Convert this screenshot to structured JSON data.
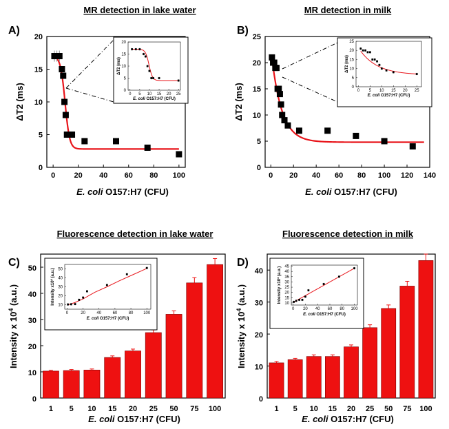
{
  "panel_labels": [
    "A)",
    "B)",
    "C)",
    "D)"
  ],
  "colors": {
    "fit": "#e8141a",
    "marker": "#000000",
    "bar": "#ee1111",
    "bar_edge": "#7a0000",
    "axis": "#000000"
  },
  "chart_data": [
    {
      "id": "A",
      "type": "scatter",
      "title": "MR detection in lake water",
      "xlabel_italic": "E. coli",
      "xlabel_rest": " O157:H7 (CFU)",
      "ylabel": "ΔT2 (ms)",
      "xlim": [
        -5,
        105
      ],
      "ylim": [
        0,
        20
      ],
      "xticks": [
        0,
        20,
        40,
        60,
        80,
        100
      ],
      "yticks": [
        0,
        5,
        10,
        15,
        20
      ],
      "x": [
        1,
        3,
        5,
        7,
        8,
        9,
        10,
        11,
        12,
        15,
        25,
        50,
        75,
        100
      ],
      "y": [
        17,
        17,
        17,
        15,
        14,
        10,
        8,
        5,
        5,
        5,
        4,
        4,
        3,
        2
      ],
      "fit": {
        "top": 17,
        "bottom": 2.8,
        "x0": 9.5,
        "k": 0.55
      },
      "inset": {
        "xlabel_italic": "E. coli",
        "xlabel_rest": " O157:H7 (CFU)",
        "ylabel": "ΔT2 (ms)",
        "xlim": [
          -1,
          26
        ],
        "ylim": [
          0,
          20
        ],
        "xticks": [
          0,
          5,
          10,
          15,
          20,
          25
        ],
        "yticks": [
          0,
          5,
          10,
          15,
          20
        ],
        "x": [
          1,
          3,
          5,
          7,
          8,
          9,
          10,
          11,
          12,
          15,
          25
        ],
        "y": [
          17,
          17,
          17,
          15,
          14,
          10,
          8,
          5,
          5,
          5,
          4
        ],
        "fit": {
          "top": 17,
          "bottom": 4,
          "x0": 9.8,
          "k": 1.1
        }
      }
    },
    {
      "id": "B",
      "type": "scatter",
      "title": "MR detection in milk",
      "xlabel_italic": "E. coli",
      "xlabel_rest": " O157:H7 (CFU)",
      "ylabel": "ΔT2 (ms)",
      "xlim": [
        -5,
        140
      ],
      "ylim": [
        0,
        25
      ],
      "xticks": [
        0,
        20,
        40,
        60,
        80,
        100,
        120,
        140
      ],
      "yticks": [
        0,
        5,
        10,
        15,
        20,
        25
      ],
      "x": [
        1,
        2,
        3,
        4,
        5,
        6,
        7,
        8,
        9,
        10,
        12,
        15,
        25,
        50,
        75,
        100,
        125
      ],
      "y": [
        21,
        20,
        20,
        19,
        19,
        15,
        15,
        14,
        12,
        10,
        9,
        8,
        7,
        7,
        6,
        5,
        4
      ],
      "fit": {
        "plateau": 4.8,
        "amp": 18,
        "tau": 9
      },
      "inset": {
        "xlabel_italic": "E. coli",
        "xlabel_rest": " O157:H7 (CFU)",
        "ylabel": "ΔT2 (ms)",
        "xlim": [
          -1,
          27
        ],
        "ylim": [
          0,
          25
        ],
        "xticks": [
          0,
          5,
          10,
          15,
          20,
          25
        ],
        "yticks": [
          0,
          5,
          10,
          15,
          20,
          25
        ],
        "x": [
          1,
          2,
          3,
          4,
          5,
          6,
          7,
          8,
          9,
          10,
          12,
          15,
          25
        ],
        "y": [
          21,
          20,
          20,
          19,
          19,
          15,
          15,
          14,
          12,
          10,
          9,
          8,
          7
        ],
        "fit": {
          "plateau": 6.5,
          "amp": 15,
          "tau": 7.5
        }
      }
    },
    {
      "id": "C",
      "type": "bar",
      "title": "Fluorescence detection in lake water",
      "xlabel_italic": "E. coli",
      "xlabel_rest": " O157:H7 (CFU)",
      "ylabel_pre": "Intensity x 10",
      "ylabel_sup": "4",
      "ylabel_post": " (a.u.)",
      "categories": [
        "1",
        "5",
        "10",
        "15",
        "20",
        "25",
        "50",
        "75",
        "100"
      ],
      "values": [
        10.3,
        10.5,
        10.7,
        15.5,
        18,
        25,
        32,
        44,
        51
      ],
      "errors": [
        0.3,
        0.4,
        0.4,
        0.6,
        0.7,
        1,
        1.3,
        2,
        2.3
      ],
      "ylim": [
        0,
        55
      ],
      "yticks": [
        0,
        10,
        20,
        30,
        40,
        50
      ],
      "inset": {
        "xlabel_italic": "E. coli",
        "xlabel_rest": " O157:H7 (CFU)",
        "ylabel_pre": "Intensity x10",
        "ylabel_sup": "4",
        "ylabel_post": " (a.u.)",
        "xlim": [
          -3,
          105
        ],
        "ylim": [
          5,
          55
        ],
        "xticks": [
          0,
          20,
          40,
          60,
          80,
          100
        ],
        "yticks": [
          10,
          20,
          30,
          40,
          50
        ],
        "x": [
          1,
          5,
          10,
          15,
          20,
          25,
          50,
          75,
          100
        ],
        "y": [
          10.3,
          10.5,
          10.7,
          15.5,
          18,
          25,
          32,
          44,
          51
        ],
        "fit": [
          [
            0,
            9.5
          ],
          [
            10,
            12.5
          ],
          [
            20,
            16.5
          ],
          [
            35,
            24
          ],
          [
            50,
            30
          ],
          [
            65,
            36.5
          ],
          [
            80,
            42.5
          ],
          [
            100,
            50.5
          ]
        ]
      }
    },
    {
      "id": "D",
      "type": "bar",
      "title": "Fluorescence detection in milk",
      "xlabel_italic": "E. coli",
      "xlabel_rest": " O157:H7 (CFU)",
      "ylabel_pre": "Intensity x 10",
      "ylabel_sup": "4",
      "ylabel_post": " (a.u.)",
      "categories": [
        "1",
        "5",
        "10",
        "15",
        "20",
        "25",
        "50",
        "75",
        "100"
      ],
      "values": [
        11,
        12,
        13,
        13,
        16,
        22,
        28,
        35,
        43
      ],
      "errors": [
        0.4,
        0.4,
        0.5,
        0.5,
        0.6,
        0.9,
        1.1,
        1.5,
        2
      ],
      "ylim": [
        0,
        45
      ],
      "yticks": [
        0,
        10,
        20,
        30,
        40
      ],
      "inset": {
        "xlabel_italic": "E. coli",
        "xlabel_rest": " O157:H7 (CFU)",
        "ylabel_pre": "Intensity x10",
        "ylabel_sup": "4",
        "ylabel_post": " (a.u.)",
        "xlim": [
          -3,
          105
        ],
        "ylim": [
          8,
          46
        ],
        "xticks": [
          0,
          20,
          40,
          60,
          80,
          100
        ],
        "yticks": [
          10,
          15,
          20,
          25,
          30,
          35,
          40,
          45
        ],
        "x": [
          1,
          5,
          10,
          15,
          20,
          25,
          50,
          75,
          100
        ],
        "y": [
          11,
          12,
          13,
          13,
          16,
          22,
          28,
          35,
          43
        ],
        "fit": [
          [
            0,
            10.5
          ],
          [
            100,
            43
          ]
        ]
      }
    }
  ]
}
